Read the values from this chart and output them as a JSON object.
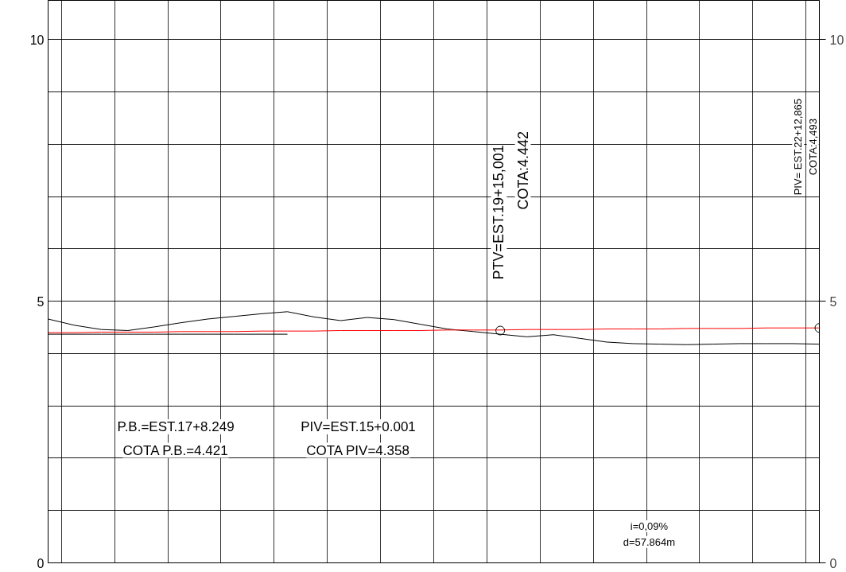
{
  "chart_data": {
    "type": "line",
    "categories": [
      null,
      null,
      null,
      null,
      null,
      null,
      null,
      null,
      null,
      null,
      null,
      null,
      null,
      null,
      null,
      null,
      null,
      null,
      null,
      null,
      null,
      null,
      null,
      null,
      null,
      null,
      null,
      null,
      null,
      null
    ],
    "series": [
      {
        "color": "#000000",
        "values": [
          4.66,
          4.54,
          4.46,
          4.44,
          4.51,
          4.59,
          4.66,
          4.71,
          4.76,
          4.8,
          4.7,
          4.63,
          4.69,
          4.65,
          4.56,
          4.47,
          4.42,
          4.37,
          4.32,
          4.36,
          4.29,
          4.22,
          4.19,
          4.18,
          4.17,
          4.18,
          4.19,
          4.19,
          4.19,
          4.18
        ]
      },
      {
        "color": "#000000",
        "values": [
          4.37,
          4.37,
          4.37,
          4.37,
          4.37,
          4.37,
          4.37,
          4.37,
          4.37,
          4.37,
          null,
          null,
          null,
          null,
          null,
          null,
          null,
          null,
          null,
          null,
          null,
          null,
          null,
          null,
          null,
          null,
          null,
          null,
          null,
          null
        ]
      },
      {
        "color": "#ff0000",
        "values": [
          4.4,
          4.4,
          4.41,
          4.41,
          4.41,
          4.42,
          4.42,
          4.42,
          4.43,
          4.43,
          4.43,
          4.44,
          4.44,
          4.44,
          4.44,
          4.45,
          4.45,
          4.45,
          4.46,
          4.46,
          4.46,
          4.47,
          4.47,
          4.47,
          4.48,
          4.48,
          4.48,
          4.49,
          4.49,
          4.49
        ]
      },
      {
        "type": "scatter",
        "marker": "circle",
        "color": "#000000",
        "values": [
          null,
          null,
          null,
          null,
          null,
          null,
          null,
          null,
          null,
          null,
          null,
          null,
          null,
          null,
          null,
          null,
          null,
          4.44,
          null,
          null,
          null,
          null,
          null,
          null,
          null,
          null,
          null,
          null,
          null,
          4.49
        ]
      }
    ],
    "ylim": [
      0,
      10.75
    ],
    "yticks": [
      0,
      {
        "value": 1,
        "label": null
      },
      {
        "value": 2,
        "label": null
      },
      {
        "value": 3,
        "label": null
      },
      {
        "value": 4,
        "label": null
      },
      5,
      {
        "value": 6,
        "label": null
      },
      {
        "value": 7,
        "label": null
      },
      {
        "value": 8,
        "label": null
      },
      {
        "value": 9,
        "label": null
      },
      10
    ],
    "y2lim": [
      0,
      10.75
    ],
    "y2ticks": [
      0,
      5,
      10
    ],
    "grid": true,
    "annotations": [
      "P.B.=EST.17+8.249",
      "COTA P.B.=4.421",
      "PIV=EST.15+0.001",
      "COTA PIV=4.358",
      "PTV=EST.19+15,001",
      "COTA:4.442",
      "PIV= EST.22+12,865",
      "COTA:4,493",
      "i=0,09%",
      "d=57.864m"
    ]
  }
}
